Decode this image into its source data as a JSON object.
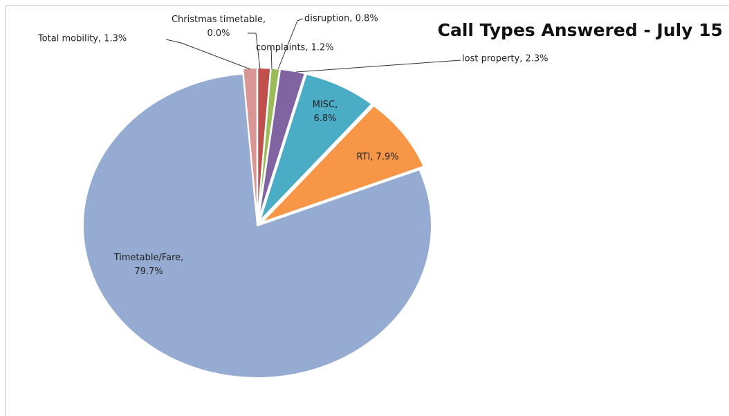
{
  "chart_data": {
    "type": "pie",
    "title": "Call Types Answered - July 15",
    "values": [
      0.0,
      1.2,
      0.8,
      2.3,
      6.8,
      7.9,
      79.7,
      1.3
    ],
    "value_labels": [
      "Christmas timetable,\n0.0%",
      "complaints, 1.2%",
      "disruption, 0.8%",
      "lost property, 2.3%",
      "MISC,\n6.8%",
      "RTI, 7.9%",
      "Timetable/Fare,\n79.7%",
      "Total mobility, 1.3%"
    ],
    "colors": [
      "#4f81bd",
      "#c0504d",
      "#9bbb59",
      "#8064a2",
      "#4bacc6",
      "#f79646",
      "#95abd2",
      "#d99694"
    ]
  }
}
